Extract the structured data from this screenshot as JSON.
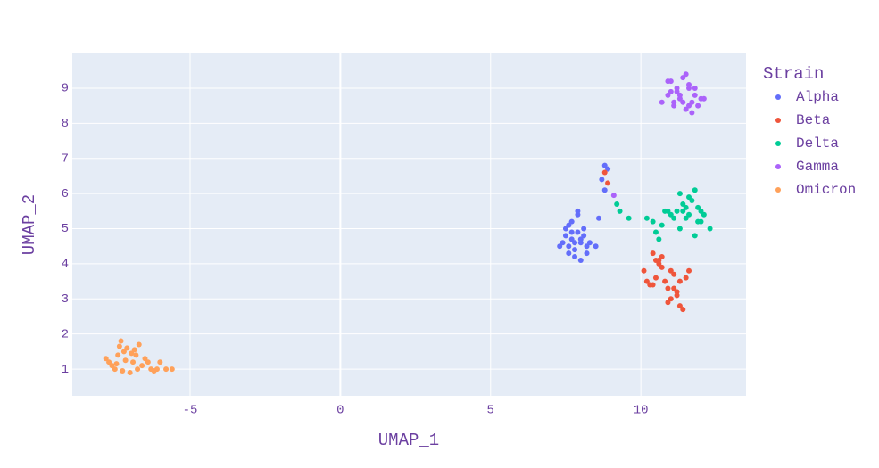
{
  "chart_data": {
    "type": "scatter",
    "xlabel": "UMAP_1",
    "ylabel": "UMAP_2",
    "legend_title": "Strain",
    "xlim": [
      -8.92,
      13.5
    ],
    "ylim": [
      0.24,
      9.99
    ],
    "xticks": [
      -5,
      0,
      5,
      10
    ],
    "yticks": [
      1,
      2,
      3,
      4,
      5,
      6,
      7,
      8,
      9
    ],
    "grid": true,
    "legend_position": "right",
    "series": [
      {
        "name": "Alpha",
        "color": "#636efa",
        "x": [
          7.4,
          7.5,
          7.6,
          7.7,
          7.8,
          7.9,
          8.0,
          8.1,
          8.2,
          7.5,
          7.7,
          7.9,
          8.1,
          8.3,
          7.6,
          7.8,
          8.0,
          8.2,
          7.9,
          7.7,
          8.5,
          8.6,
          7.3,
          8.0,
          7.8,
          8.8,
          8.7,
          8.8,
          8.9,
          7.6
        ],
        "values": [
          4.6,
          4.8,
          4.5,
          4.7,
          4.4,
          4.9,
          4.6,
          4.8,
          4.5,
          5.0,
          5.2,
          5.4,
          5.0,
          4.6,
          4.3,
          4.2,
          4.1,
          4.3,
          5.5,
          4.9,
          4.5,
          5.3,
          4.5,
          4.7,
          4.6,
          6.8,
          6.4,
          6.1,
          6.7,
          5.1
        ]
      },
      {
        "name": "Beta",
        "color": "#ef553b",
        "x": [
          10.1,
          10.2,
          10.3,
          10.4,
          10.5,
          10.6,
          10.7,
          10.8,
          10.9,
          11.0,
          11.1,
          11.2,
          11.3,
          11.4,
          11.5,
          11.6,
          10.5,
          10.7,
          10.9,
          11.1,
          11.3,
          11.2,
          10.4,
          10.6,
          11.0,
          8.8,
          8.9
        ],
        "values": [
          3.8,
          3.5,
          3.4,
          4.3,
          3.6,
          4.1,
          4.2,
          3.5,
          3.3,
          3.0,
          3.7,
          3.2,
          2.8,
          2.7,
          3.6,
          3.8,
          4.1,
          3.9,
          2.9,
          3.3,
          3.5,
          3.1,
          3.4,
          4.0,
          3.8,
          6.6,
          6.3
        ]
      },
      {
        "name": "Delta",
        "color": "#00cc96",
        "x": [
          9.2,
          9.3,
          9.6,
          10.2,
          10.4,
          10.6,
          10.7,
          10.8,
          11.0,
          11.2,
          11.3,
          11.4,
          11.5,
          11.6,
          11.7,
          11.8,
          11.9,
          12.0,
          12.1,
          12.3,
          11.3,
          11.6,
          11.9,
          11.5,
          11.8,
          10.9,
          11.1,
          10.5,
          11.4,
          12.0
        ],
        "values": [
          5.7,
          5.5,
          5.3,
          5.3,
          5.2,
          4.7,
          5.1,
          5.5,
          5.4,
          5.5,
          6.0,
          5.5,
          5.3,
          5.4,
          5.8,
          6.1,
          5.6,
          5.5,
          5.4,
          5.0,
          5.0,
          5.9,
          5.2,
          5.6,
          4.8,
          5.5,
          5.3,
          4.9,
          5.7,
          5.2
        ]
      },
      {
        "name": "Gamma",
        "color": "#ab63fa",
        "x": [
          10.7,
          10.9,
          11.0,
          11.1,
          11.2,
          11.3,
          11.4,
          11.5,
          11.6,
          11.7,
          11.8,
          11.9,
          12.0,
          12.1,
          11.0,
          11.2,
          11.4,
          11.6,
          11.8,
          11.3,
          11.5,
          10.9,
          11.7,
          11.1,
          11.6,
          9.1
        ],
        "values": [
          8.6,
          8.8,
          9.2,
          8.5,
          8.9,
          8.7,
          9.3,
          8.4,
          9.1,
          8.6,
          8.8,
          8.5,
          8.7,
          8.7,
          8.9,
          9.0,
          8.6,
          8.5,
          9.0,
          8.8,
          9.4,
          9.2,
          8.3,
          8.6,
          9.0,
          5.95
        ]
      },
      {
        "name": "Omicron",
        "color": "#ffa15a",
        "x": [
          -7.8,
          -7.7,
          -7.6,
          -7.5,
          -7.4,
          -7.3,
          -7.2,
          -7.1,
          -7.0,
          -6.9,
          -6.8,
          -6.7,
          -6.6,
          -6.5,
          -6.3,
          -6.1,
          -6.0,
          -5.8,
          -5.6,
          -7.35,
          -7.15,
          -6.95,
          -6.75,
          -6.85,
          -7.25,
          -7.45,
          -6.4,
          -6.2
        ],
        "values": [
          1.3,
          1.2,
          1.1,
          1.0,
          1.4,
          1.8,
          1.5,
          1.6,
          0.9,
          1.2,
          1.4,
          1.7,
          1.1,
          1.3,
          1.0,
          1.0,
          1.2,
          1.0,
          1.0,
          1.65,
          1.25,
          1.45,
          1.0,
          1.55,
          0.95,
          1.15,
          1.2,
          0.95
        ]
      }
    ]
  }
}
